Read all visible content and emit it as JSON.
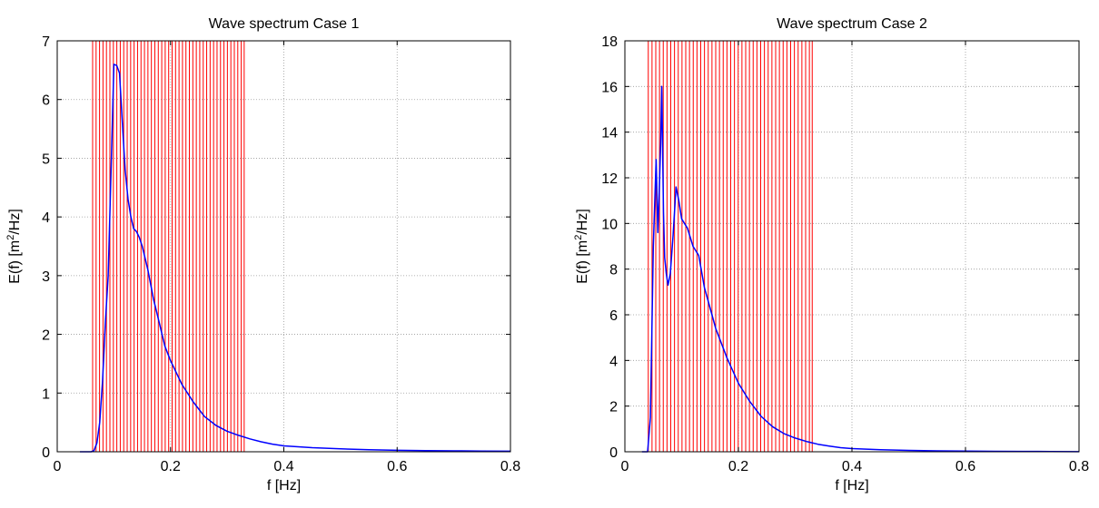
{
  "chart_data": [
    {
      "type": "line",
      "title": "Wave spectrum Case 1",
      "xlabel": "f [Hz]",
      "ylabel_main": "E(f) [m",
      "ylabel_sup": "2",
      "ylabel_tail": "/Hz]",
      "xlim": [
        0,
        0.8
      ],
      "ylim": [
        0,
        7
      ],
      "xticks": [
        0,
        0.2,
        0.4,
        0.6,
        0.8
      ],
      "xtick_labels": [
        "0",
        "0.2",
        "0.4",
        "0.6",
        "0.8"
      ],
      "yticks": [
        0,
        1,
        2,
        3,
        4,
        5,
        6,
        7
      ],
      "ytick_labels": [
        "0",
        "1",
        "2",
        "3",
        "4",
        "5",
        "6",
        "7"
      ],
      "grid": true,
      "line_color": "#0000ff",
      "vline_color": "#ff0000",
      "vlines": [
        0.0625,
        0.0686,
        0.0747,
        0.0808,
        0.0869,
        0.093,
        0.0991,
        0.1052,
        0.1113,
        0.1174,
        0.1235,
        0.1296,
        0.1357,
        0.1418,
        0.1479,
        0.154,
        0.1601,
        0.1662,
        0.1723,
        0.1784,
        0.1845,
        0.1906,
        0.1967,
        0.2028,
        0.2089,
        0.215,
        0.2211,
        0.2272,
        0.2333,
        0.2394,
        0.2455,
        0.2516,
        0.2577,
        0.2638,
        0.2699,
        0.276,
        0.2821,
        0.2882,
        0.2943,
        0.3004,
        0.3065,
        0.3126,
        0.3187,
        0.3248,
        0.33
      ],
      "x": [
        0.04,
        0.06,
        0.065,
        0.07,
        0.075,
        0.08,
        0.085,
        0.09,
        0.095,
        0.1,
        0.105,
        0.11,
        0.115,
        0.12,
        0.125,
        0.13,
        0.135,
        0.14,
        0.145,
        0.15,
        0.16,
        0.17,
        0.18,
        0.19,
        0.2,
        0.22,
        0.24,
        0.26,
        0.28,
        0.3,
        0.32,
        0.34,
        0.36,
        0.38,
        0.4,
        0.45,
        0.5,
        0.55,
        0.6,
        0.65,
        0.7,
        0.75,
        0.8
      ],
      "y": [
        0,
        0,
        0.02,
        0.15,
        0.5,
        1.2,
        2.2,
        3.0,
        4.8,
        6.6,
        6.58,
        6.45,
        5.6,
        4.8,
        4.3,
        4.0,
        3.8,
        3.75,
        3.65,
        3.5,
        3.1,
        2.6,
        2.2,
        1.8,
        1.55,
        1.15,
        0.85,
        0.6,
        0.45,
        0.35,
        0.28,
        0.22,
        0.17,
        0.13,
        0.1,
        0.07,
        0.05,
        0.035,
        0.025,
        0.02,
        0.015,
        0.012,
        0.01
      ]
    },
    {
      "type": "line",
      "title": "Wave spectrum Case 2",
      "xlabel": "f [Hz]",
      "ylabel_main": "E(f) [m",
      "ylabel_sup": "2",
      "ylabel_tail": "/Hz]",
      "xlim": [
        0,
        0.8
      ],
      "ylim": [
        0,
        18
      ],
      "xticks": [
        0,
        0.2,
        0.4,
        0.6,
        0.8
      ],
      "xtick_labels": [
        "0",
        "0.2",
        "0.4",
        "0.6",
        "0.8"
      ],
      "yticks": [
        0,
        2,
        4,
        6,
        8,
        10,
        12,
        14,
        16,
        18
      ],
      "ytick_labels": [
        "0",
        "2",
        "4",
        "6",
        "8",
        "10",
        "12",
        "14",
        "16",
        "18"
      ],
      "grid": true,
      "line_color": "#0000ff",
      "vline_color": "#ff0000",
      "vlines": [
        0.0412,
        0.0478,
        0.0544,
        0.061,
        0.0676,
        0.0742,
        0.0808,
        0.0874,
        0.094,
        0.1006,
        0.1072,
        0.1138,
        0.1204,
        0.127,
        0.1336,
        0.1402,
        0.1468,
        0.1534,
        0.16,
        0.1666,
        0.1732,
        0.1798,
        0.1864,
        0.193,
        0.1996,
        0.2062,
        0.2128,
        0.2194,
        0.226,
        0.2326,
        0.2392,
        0.2458,
        0.2524,
        0.259,
        0.2656,
        0.2722,
        0.2788,
        0.2854,
        0.292,
        0.2986,
        0.3052,
        0.3118,
        0.3184,
        0.325,
        0.33
      ],
      "x": [
        0.03,
        0.04,
        0.045,
        0.05,
        0.055,
        0.058,
        0.06,
        0.063,
        0.065,
        0.068,
        0.07,
        0.073,
        0.076,
        0.08,
        0.085,
        0.09,
        0.095,
        0.1,
        0.105,
        0.11,
        0.115,
        0.12,
        0.13,
        0.14,
        0.15,
        0.16,
        0.18,
        0.2,
        0.22,
        0.24,
        0.26,
        0.28,
        0.3,
        0.32,
        0.34,
        0.36,
        0.38,
        0.4,
        0.45,
        0.5,
        0.55,
        0.6,
        0.65,
        0.7,
        0.75,
        0.8
      ],
      "y": [
        0,
        0,
        1.5,
        9.0,
        12.8,
        9.6,
        11.0,
        13.5,
        16.0,
        10.5,
        8.5,
        7.8,
        7.3,
        7.8,
        9.5,
        11.6,
        11.0,
        10.2,
        10.0,
        9.8,
        9.4,
        9.0,
        8.6,
        7.2,
        6.3,
        5.4,
        4.1,
        3.0,
        2.2,
        1.55,
        1.1,
        0.8,
        0.6,
        0.45,
        0.33,
        0.25,
        0.18,
        0.14,
        0.09,
        0.06,
        0.04,
        0.03,
        0.02,
        0.015,
        0.01,
        0.005
      ]
    }
  ]
}
